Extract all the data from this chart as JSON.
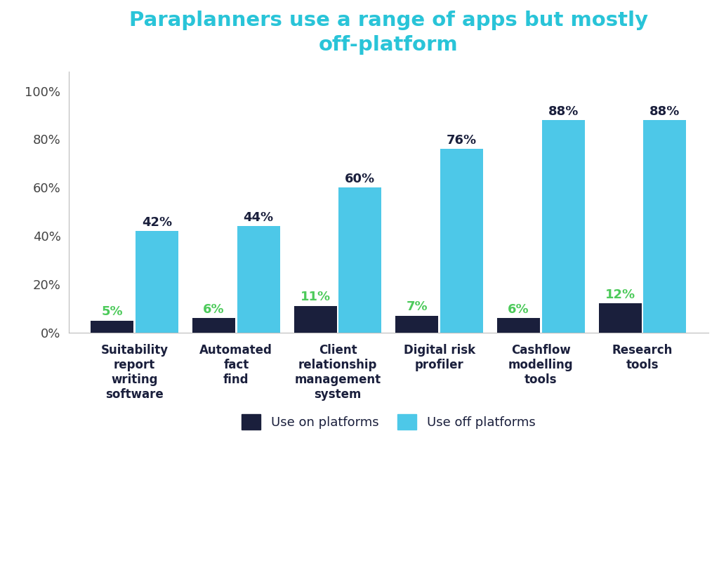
{
  "title": "Paraplanners use a range of apps but mostly\noff-platform",
  "title_color": "#29c4d8",
  "categories": [
    "Suitability\nreport\nwriting\nsoftware",
    "Automated\nfact\nfind",
    "Client\nrelationship\nmanagement\nsystem",
    "Digital risk\nprofiler",
    "Cashflow\nmodelling\ntools",
    "Research\ntools"
  ],
  "on_platform_values": [
    5,
    6,
    11,
    7,
    6,
    12
  ],
  "off_platform_values": [
    42,
    44,
    60,
    76,
    88,
    88
  ],
  "on_platform_color": "#1a1f3c",
  "off_platform_color": "#4dc8e8",
  "on_platform_label_color": "#4cca5a",
  "off_platform_label_color": "#1a1f3c",
  "bar_width": 0.42,
  "ylim": [
    0,
    108
  ],
  "yticks": [
    0,
    20,
    40,
    60,
    80,
    100
  ],
  "ytick_labels": [
    "0%",
    "20%",
    "40%",
    "60%",
    "80%",
    "100%"
  ],
  "legend_on_label": "Use on platforms",
  "legend_off_label": "Use off platforms",
  "background_color": "#ffffff",
  "title_fontsize": 21,
  "label_fontsize": 12,
  "tick_fontsize": 13,
  "annotation_fontsize": 13,
  "legend_fontsize": 13
}
